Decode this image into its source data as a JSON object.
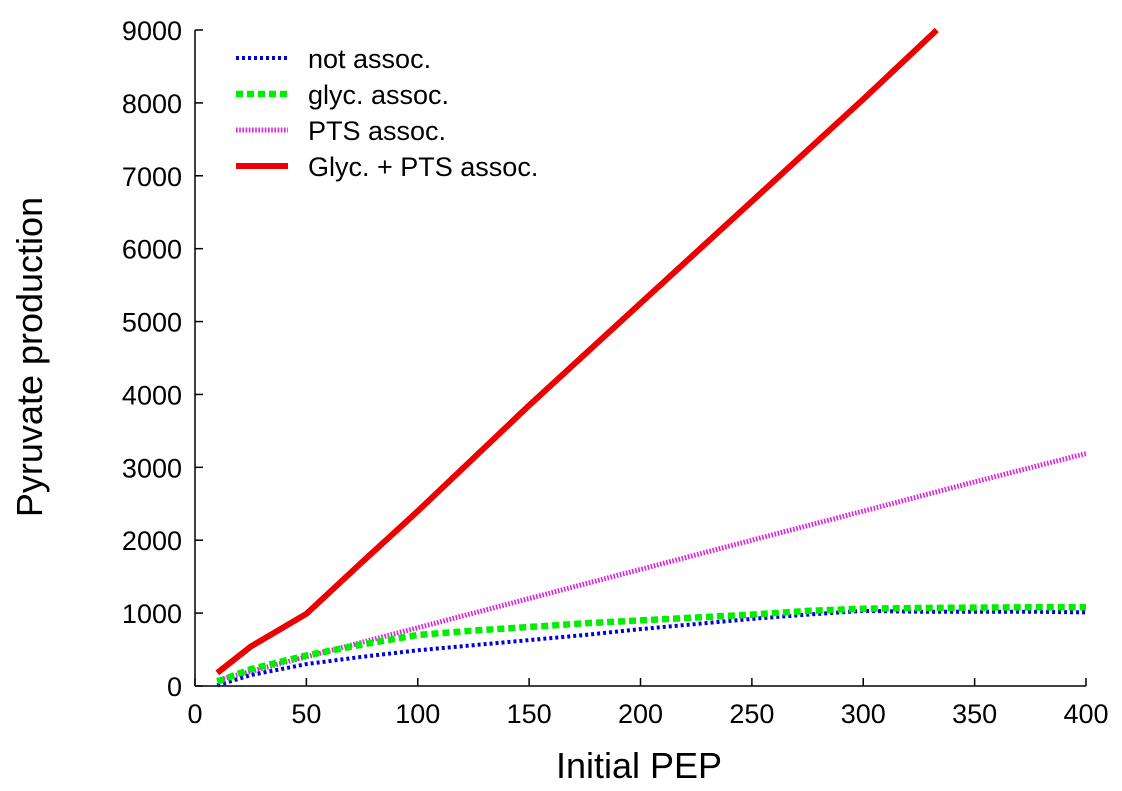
{
  "chart_data": {
    "type": "line",
    "title": "",
    "xlabel": "Initial PEP",
    "ylabel": "Pyruvate production",
    "xlim": [
      0,
      400
    ],
    "ylim": [
      0,
      9000
    ],
    "xticks": [
      0,
      50,
      100,
      150,
      200,
      250,
      300,
      350,
      400
    ],
    "yticks": [
      0,
      1000,
      2000,
      3000,
      4000,
      5000,
      6000,
      7000,
      8000,
      9000
    ],
    "grid": false,
    "legend_position": "top-left",
    "series": [
      {
        "name": "not assoc.",
        "color": "#0000dd",
        "style": "dotted",
        "x": [
          10,
          25,
          50,
          75,
          100,
          125,
          150,
          175,
          200,
          225,
          250,
          275,
          300,
          325,
          350,
          375,
          400
        ],
        "y": [
          10,
          150,
          300,
          400,
          490,
          560,
          630,
          700,
          780,
          850,
          920,
          980,
          1030,
          1020,
          1020,
          1020,
          1010
        ]
      },
      {
        "name": "glyc. assoc.",
        "color": "#00ee00",
        "style": "dashed-thick",
        "x": [
          10,
          25,
          50,
          75,
          100,
          125,
          150,
          175,
          200,
          225,
          250,
          275,
          300,
          325,
          350,
          375,
          400
        ],
        "y": [
          60,
          230,
          420,
          570,
          700,
          760,
          810,
          860,
          900,
          940,
          980,
          1030,
          1060,
          1070,
          1075,
          1080,
          1080
        ]
      },
      {
        "name": "PTS assoc.",
        "color": "#dd22dd",
        "style": "fine-hatched",
        "x": [
          10,
          50,
          100,
          150,
          200,
          250,
          300,
          350,
          400
        ],
        "y": [
          80,
          400,
          800,
          1200,
          1600,
          2000,
          2400,
          2800,
          3190
        ]
      },
      {
        "name": "Glyc. + PTS assoc.",
        "color": "#ee0000",
        "style": "solid",
        "x": [
          10,
          25,
          50,
          75,
          100,
          150,
          200,
          250,
          300,
          333
        ],
        "y": [
          180,
          540,
          990,
          1700,
          2400,
          3850,
          5250,
          6650,
          8050,
          9000
        ]
      }
    ]
  }
}
